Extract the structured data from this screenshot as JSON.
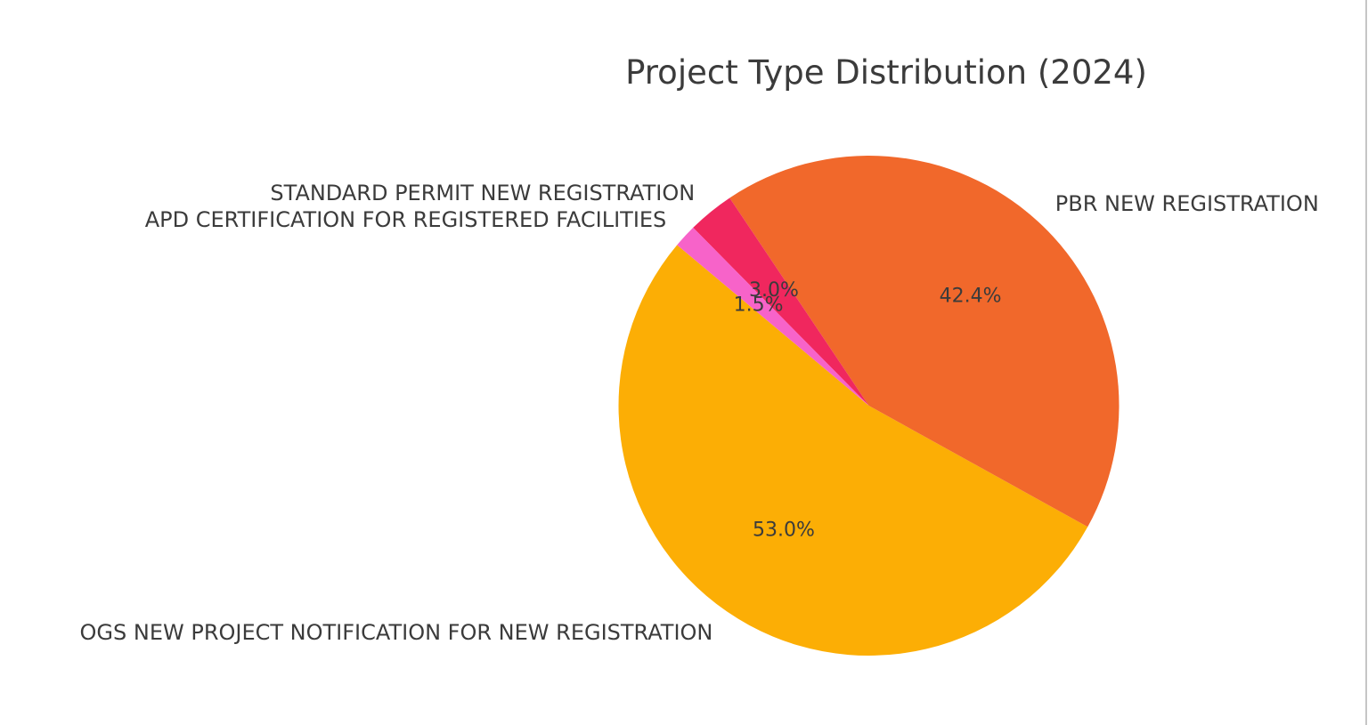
{
  "page": {
    "background_color": "#ffffff",
    "right_edge_line_color": "#c6c6c6"
  },
  "chart_data": {
    "type": "pie",
    "title": "Project Type Distribution (2024)",
    "text_color": "#3b3b3b",
    "start_angle": 140,
    "counterclockwise": true,
    "pct_distance": 0.6,
    "label_distance": 1.1,
    "legend_position": "none",
    "slices": [
      {
        "label": "OGS NEW PROJECT NOTIFICATION FOR NEW REGISTRATION",
        "percent": 53.0,
        "percent_label": "53.0%",
        "color": "#FCAE05"
      },
      {
        "label": "PBR NEW REGISTRATION",
        "percent": 42.4,
        "percent_label": "42.4%",
        "color": "#F1682B"
      },
      {
        "label": "STANDARD PERMIT NEW REGISTRATION",
        "percent": 3.0,
        "percent_label": "3.0%",
        "color": "#F0275E"
      },
      {
        "label": "APD CERTIFICATION FOR REGISTERED FACILITIES",
        "percent": 1.5,
        "percent_label": "1.5%",
        "color": "#F763C9"
      }
    ]
  }
}
